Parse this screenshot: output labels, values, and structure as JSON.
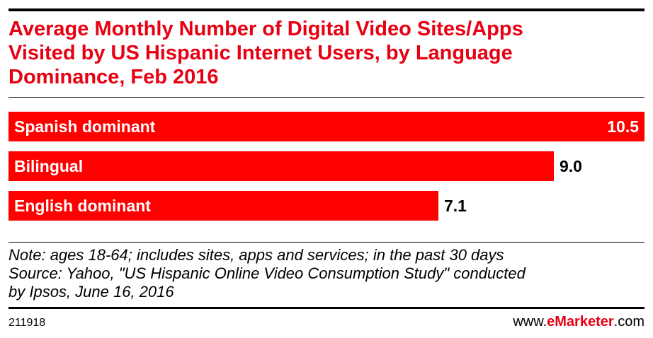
{
  "header": {
    "title_lines": [
      "Average Monthly Number of Digital Video Sites/Apps",
      "Visited by US Hispanic Internet Users, by Language",
      "Dominance, Feb 2016"
    ]
  },
  "chart_data": {
    "type": "bar",
    "orientation": "horizontal",
    "title": "Average Monthly Number of Digital Video Sites/Apps Visited by US Hispanic Internet Users, by Language Dominance, Feb 2016",
    "categories": [
      "Spanish dominant",
      "Bilingual",
      "English dominant"
    ],
    "values": [
      10.5,
      9.0,
      7.1
    ],
    "value_labels": [
      "10.5",
      "9.0",
      "7.1"
    ],
    "xlim": [
      0,
      10.5
    ],
    "grid": false,
    "legend": "none",
    "colors": {
      "bar": "#ff0000",
      "title": "#e60012"
    }
  },
  "footer": {
    "note": "Note: ages 18-64; includes sites, apps and services; in the past 30 days",
    "source_line1": "Source: Yahoo, \"US Hispanic Online Video Consumption Study\" conducted",
    "source_line2": "by Ipsos, June 16, 2016",
    "chart_id": "211918",
    "brand_prefix": "www.",
    "brand_em": "eMarketer",
    "brand_suffix": ".com"
  }
}
